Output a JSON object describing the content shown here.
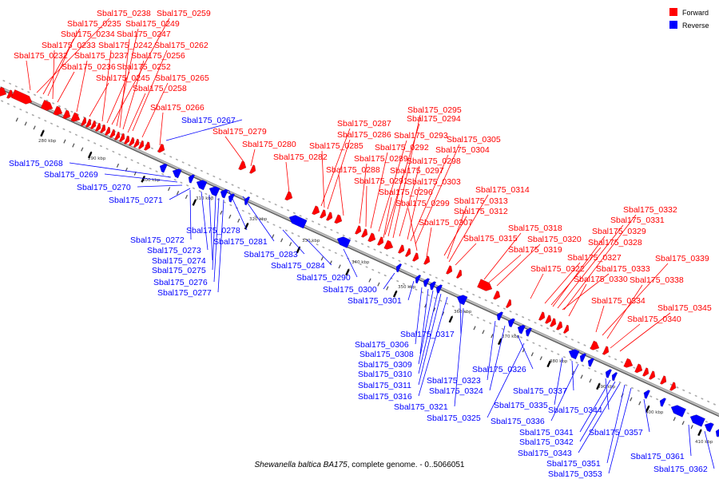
{
  "legend": [
    {
      "label": "Forward",
      "color": "#ff0000"
    },
    {
      "label": "Reverse",
      "color": "#0000ff"
    }
  ],
  "colors": {
    "forward": "#ff0000",
    "reverse": "#0000ff",
    "backbone": "#888888"
  },
  "caption": {
    "species": "Shewanella baltica BA175",
    "rest": ", complete genome. - 0..5066051"
  },
  "kbp_ticks": [
    "280 kbp",
    "290 kbp",
    "300 kbp",
    "310 kbp",
    "320 kbp",
    "330 kbp",
    "340 kbp",
    "350 kbp",
    "360 kbp",
    "370 kbp",
    "380 kbp",
    "390 kbp",
    "400 kbp",
    "410 kbp"
  ],
  "forward_labels": [
    "Sbal175_0238",
    "Sbal175_0259",
    "Sbal175_0235",
    "Sbal175_0249",
    "Sbal175_0234",
    "Sbal175_0247",
    "Sbal175_0233",
    "Sbal175_0242",
    "Sbal175_0262",
    "Sbal175_0232",
    "Sbal175_0237",
    "Sbal175_0256",
    "Sbal175_0236",
    "Sbal175_0252",
    "Sbal175_0245",
    "Sbal175_0265",
    "Sbal175_0258",
    "Sbal175_0266",
    "Sbal175_0279",
    "Sbal175_0280",
    "Sbal175_0282",
    "Sbal175_0295",
    "Sbal175_0287",
    "Sbal175_0294",
    "Sbal175_0286",
    "Sbal175_0293",
    "Sbal175_0285",
    "Sbal175_0292",
    "Sbal175_0305",
    "Sbal175_0304",
    "Sbal175_0289",
    "Sbal175_0298",
    "Sbal175_0288",
    "Sbal175_0297",
    "Sbal175_0291",
    "Sbal175_0303",
    "Sbal175_0296",
    "Sbal175_0314",
    "Sbal175_0313",
    "Sbal175_0299",
    "Sbal175_0312",
    "Sbal175_0307",
    "Sbal175_0315",
    "Sbal175_0318",
    "Sbal175_0320",
    "Sbal175_0319",
    "Sbal175_0332",
    "Sbal175_0331",
    "Sbal175_0329",
    "Sbal175_0328",
    "Sbal175_0327",
    "Sbal175_0339",
    "Sbal175_0322",
    "Sbal175_0333",
    "Sbal175_0330",
    "Sbal175_0338",
    "Sbal175_0334",
    "Sbal175_0345",
    "Sbal175_0340"
  ],
  "reverse_labels": [
    "Sbal175_0267",
    "Sbal175_0268",
    "Sbal175_0269",
    "Sbal175_0270",
    "Sbal175_0271",
    "Sbal175_0278",
    "Sbal175_0281",
    "Sbal175_0272",
    "Sbal175_0273",
    "Sbal175_0274",
    "Sbal175_0275",
    "Sbal175_0276",
    "Sbal175_0277",
    "Sbal175_0283",
    "Sbal175_0284",
    "Sbal175_0290",
    "Sbal175_0300",
    "Sbal175_0301",
    "Sbal175_0317",
    "Sbal175_0306",
    "Sbal175_0308",
    "Sbal175_0309",
    "Sbal175_0310",
    "Sbal175_0311",
    "Sbal175_0316",
    "Sbal175_0326",
    "Sbal175_0323",
    "Sbal175_0324",
    "Sbal175_0321",
    "Sbal175_0325",
    "Sbal175_0335",
    "Sbal175_0337",
    "Sbal175_0336",
    "Sbal175_0344",
    "Sbal175_0341",
    "Sbal175_0342",
    "Sbal175_0343",
    "Sbal175_0357",
    "Sbal175_0351",
    "Sbal175_0353",
    "Sbal175_0361",
    "Sbal175_0362"
  ]
}
